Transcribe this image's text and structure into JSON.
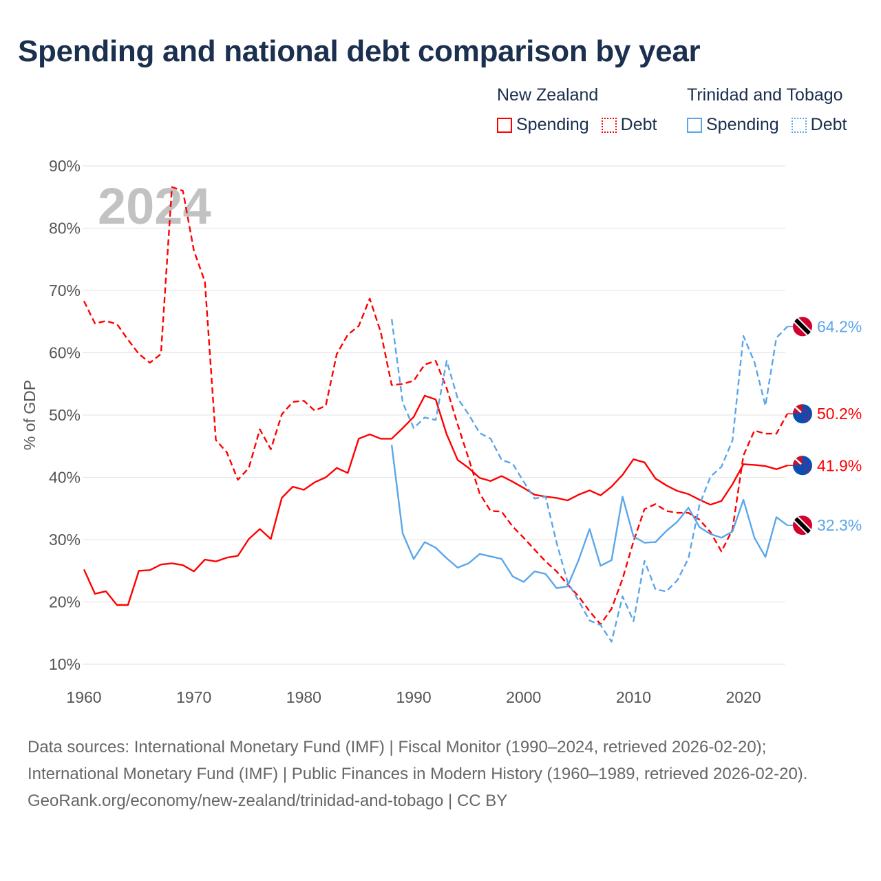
{
  "title": "Spending and national debt comparison by year",
  "legend": {
    "groups": [
      {
        "country": "New Zealand",
        "spending_label": "Spending",
        "debt_label": "Debt",
        "color": "#ff0000"
      },
      {
        "country": "Trinidad and Tobago",
        "spending_label": "Spending",
        "debt_label": "Debt",
        "color": "#5ba6ea"
      }
    ]
  },
  "year_watermark": "2024",
  "footer": {
    "sources": "Data sources: International Monetary Fund (IMF) | Fiscal Monitor (1990–2024, retrieved 2026-02-20); International Monetary Fund (IMF) | Public Finances in Modern History (1960–1989, retrieved 2026-02-20).",
    "credit": "GeoRank.org/economy/new-zealand/trinidad-and-tobago | CC BY"
  },
  "chart_data": {
    "type": "line",
    "title": "Spending and national debt comparison by year",
    "xlabel": "",
    "ylabel": "% of GDP",
    "xlim": [
      1960,
      2024
    ],
    "ylim": [
      10,
      90
    ],
    "x_ticks": [
      1960,
      1970,
      1980,
      1990,
      2000,
      2010,
      2020
    ],
    "x_tick_labels": [
      "1960",
      "1970",
      "1980",
      "1990",
      "2000",
      "2010",
      "2020"
    ],
    "y_ticks": [
      10,
      20,
      30,
      40,
      50,
      60,
      70,
      80,
      90
    ],
    "y_tick_labels": [
      "10%",
      "20%",
      "30%",
      "40%",
      "50%",
      "60%",
      "70%",
      "80%",
      "90%"
    ],
    "grid": true,
    "legend_position": "top-right",
    "series": [
      {
        "name": "New Zealand Spending",
        "country": "New Zealand",
        "measure": "Spending",
        "color": "#ff0000",
        "dash": false,
        "start_year": 1960,
        "end_label": "41.9%",
        "flag": "new-zealand",
        "values": [
          25.2,
          21.3,
          21.7,
          19.5,
          19.5,
          25.0,
          25.1,
          26.0,
          26.2,
          25.9,
          24.9,
          26.8,
          26.5,
          27.1,
          27.4,
          30.1,
          31.7,
          30.1,
          36.7,
          38.5,
          38.0,
          39.2,
          40.0,
          41.5,
          40.7,
          46.2,
          46.9,
          46.2,
          46.2,
          47.9,
          49.7,
          53.1,
          52.5,
          46.9,
          42.8,
          41.5,
          39.9,
          39.4,
          40.2,
          39.3,
          38.3,
          37.2,
          36.9,
          36.7,
          36.3,
          37.2,
          37.9,
          37.1,
          38.5,
          40.4,
          42.9,
          42.4,
          39.8,
          38.7,
          37.8,
          37.3,
          36.4,
          35.6,
          36.2,
          38.9,
          42.1,
          42.0,
          41.8,
          41.3,
          41.9
        ]
      },
      {
        "name": "New Zealand Debt",
        "country": "New Zealand",
        "measure": "Debt",
        "color": "#ff0000",
        "dash": true,
        "start_year": 1960,
        "end_label": "50.2%",
        "flag": "new-zealand",
        "values": [
          68.3,
          64.7,
          65.1,
          64.6,
          62.1,
          59.8,
          58.4,
          59.8,
          86.6,
          86.0,
          76.4,
          71.4,
          46.0,
          44.0,
          39.6,
          41.5,
          47.7,
          44.5,
          50.1,
          52.1,
          52.3,
          50.7,
          51.5,
          59.8,
          62.9,
          64.3,
          68.7,
          63.3,
          54.8,
          55.0,
          55.5,
          58.1,
          58.7,
          54.3,
          48.5,
          43.0,
          37.4,
          34.6,
          34.5,
          32.1,
          30.3,
          28.4,
          26.5,
          24.9,
          22.8,
          20.9,
          18.5,
          16.4,
          18.9,
          23.7,
          29.7,
          34.9,
          35.7,
          34.6,
          34.3,
          34.3,
          33.2,
          31.2,
          28.1,
          31.6,
          43.5,
          47.5,
          47.0,
          47.0,
          50.2
        ]
      },
      {
        "name": "Trinidad and Tobago Spending",
        "country": "Trinidad and Tobago",
        "measure": "Spending",
        "color": "#5ba6ea",
        "dash": false,
        "start_year": 1988,
        "end_label": "32.3%",
        "flag": "trinidad-and-tobago",
        "values": [
          45.2,
          31.0,
          26.9,
          29.6,
          28.7,
          27.0,
          25.5,
          26.2,
          27.7,
          27.3,
          26.9,
          24.1,
          23.2,
          24.9,
          24.5,
          22.2,
          22.5,
          26.7,
          31.7,
          25.8,
          26.7,
          36.9,
          30.5,
          29.5,
          29.6,
          31.4,
          32.9,
          35.1,
          32.0,
          30.9,
          30.3,
          31.3,
          36.4,
          30.3,
          27.2,
          33.6,
          32.3
        ]
      },
      {
        "name": "Trinidad and Tobago Debt",
        "country": "Trinidad and Tobago",
        "measure": "Debt",
        "color": "#5ba6ea",
        "dash": true,
        "start_year": 1988,
        "end_label": "64.2%",
        "flag": "trinidad-and-tobago",
        "values": [
          65.4,
          52.0,
          47.9,
          49.6,
          49.2,
          58.7,
          52.7,
          50.1,
          47.1,
          46.2,
          42.8,
          42.2,
          39.3,
          36.6,
          36.9,
          29.5,
          23.2,
          20.2,
          17.0,
          16.3,
          13.6,
          20.9,
          16.9,
          26.6,
          22.0,
          21.7,
          23.5,
          27.0,
          35.6,
          40.1,
          41.7,
          45.9,
          62.7,
          58.5,
          51.5,
          62.4,
          64.2
        ]
      }
    ]
  }
}
